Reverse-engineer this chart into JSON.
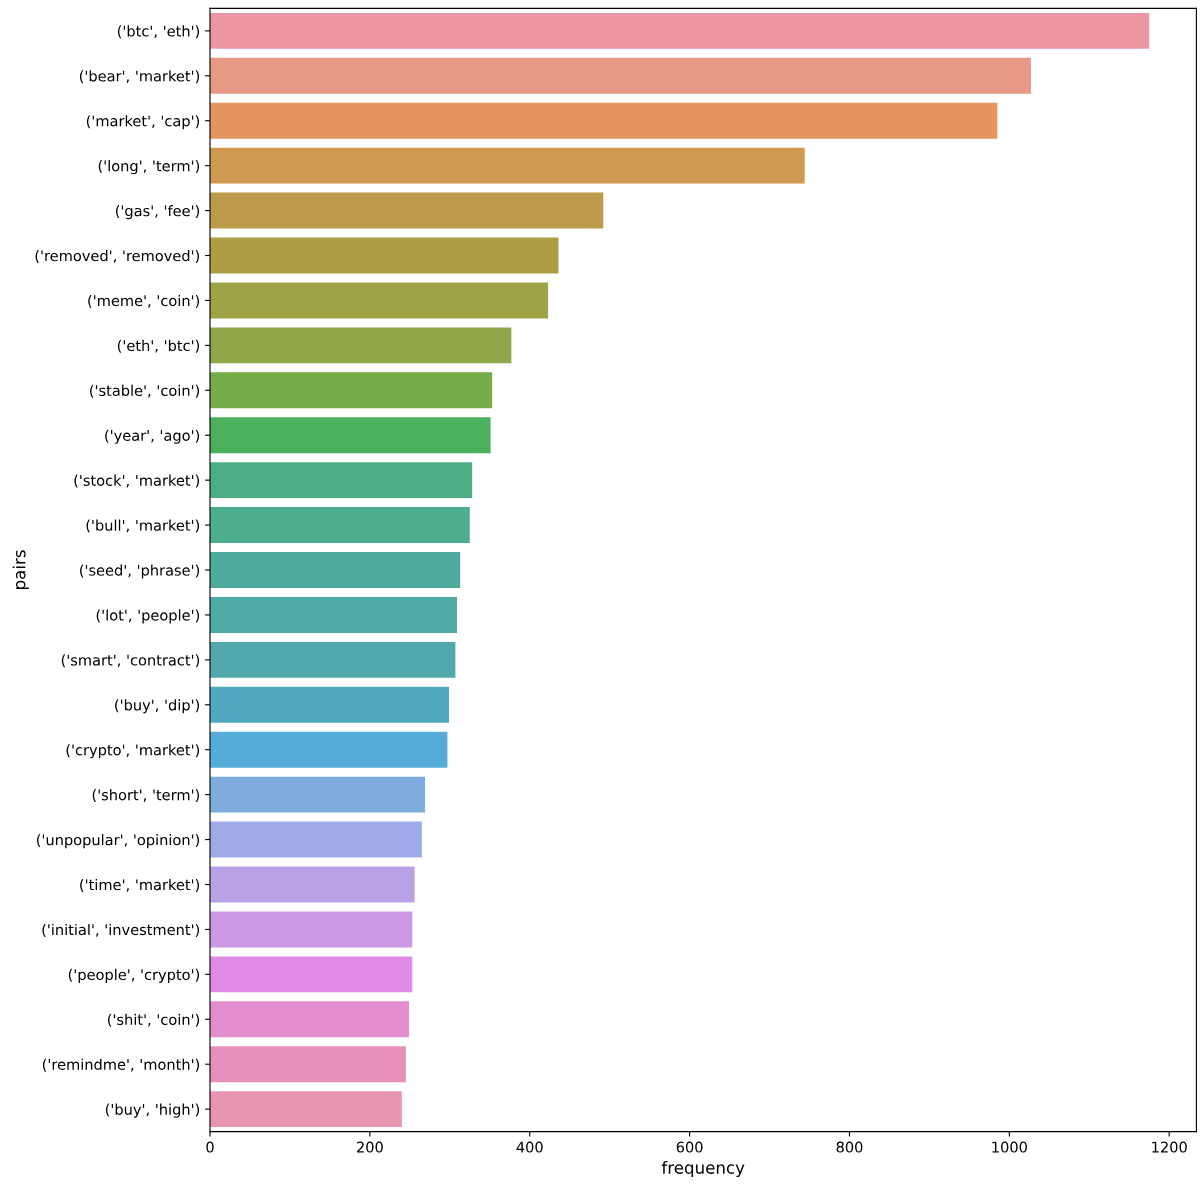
{
  "chart_data": {
    "type": "bar",
    "orientation": "horizontal",
    "xlabel": "frequency",
    "ylabel": "pairs",
    "categories": [
      "('btc', 'eth')",
      "('bear', 'market')",
      "('market', 'cap')",
      "('long', 'term')",
      "('gas', 'fee')",
      "('removed', 'removed')",
      "('meme', 'coin')",
      "('eth', 'btc')",
      "('stable', 'coin')",
      "('year', 'ago')",
      "('stock', 'market')",
      "('bull', 'market')",
      "('seed', 'phrase')",
      "('lot', 'people')",
      "('smart', 'contract')",
      "('buy', 'dip')",
      "('crypto', 'market')",
      "('short', 'term')",
      "('unpopular', 'opinion')",
      "('time', 'market')",
      "('initial', 'investment')",
      "('people', 'crypto')",
      "('shit', 'coin')",
      "('remindme', 'month')",
      "('buy', 'high')"
    ],
    "values": [
      1175,
      1027,
      985,
      744,
      492,
      436,
      423,
      377,
      353,
      351,
      328,
      325,
      313,
      309,
      307,
      299,
      297,
      269,
      265,
      256,
      253,
      253,
      249,
      245,
      240
    ],
    "colors": [
      "#eb96a2",
      "#e89985",
      "#e59560",
      "#cf9a50",
      "#be9b4a",
      "#ad9e45",
      "#9ea445",
      "#8ea84a",
      "#74ad48",
      "#4bb05c",
      "#4caf83",
      "#4dad8f",
      "#4eab9c",
      "#4fa9a4",
      "#50a8ad",
      "#51a9bf",
      "#56acd9",
      "#7eacde",
      "#a1aae8",
      "#b9a2e5",
      "#cc98e3",
      "#df8be5",
      "#e48dcf",
      "#e690bb",
      "#e895b2"
    ],
    "xlim": [
      0,
      1234
    ],
    "xticks": [
      0,
      200,
      400,
      600,
      800,
      1000,
      1200
    ],
    "grid": false,
    "legend": false
  }
}
